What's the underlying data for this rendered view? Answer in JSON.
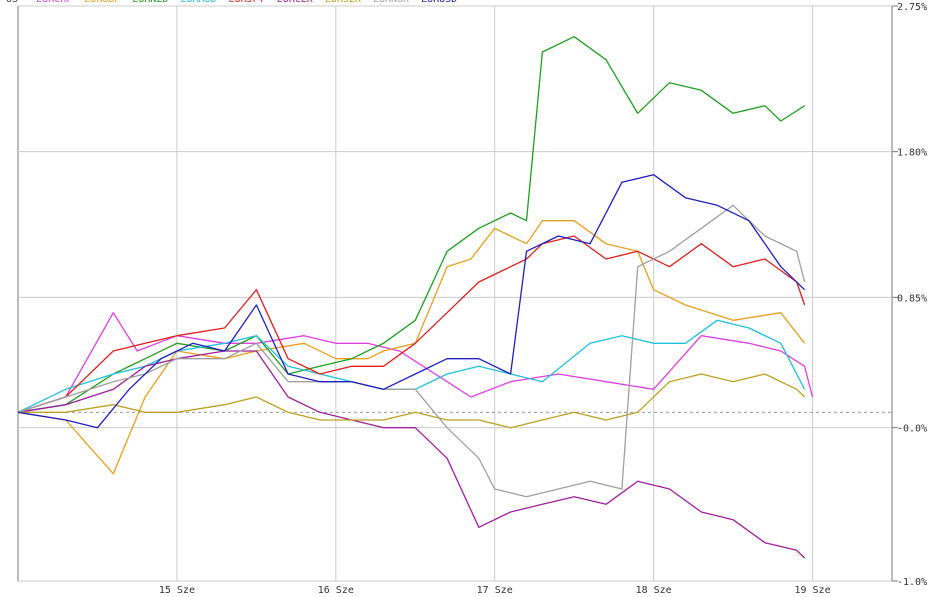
{
  "chart_data": {
    "type": "line",
    "title": "",
    "xlabel": "",
    "ylabel": "",
    "ylim": [
      -1.0,
      2.75
    ],
    "y_ticks": [
      {
        "value": 2.75,
        "label": "2.75%"
      },
      {
        "value": 1.8,
        "label": "1.80%"
      },
      {
        "value": 0.85,
        "label": "0.85%"
      },
      {
        "value": -0.0,
        "label": "-0.0%"
      },
      {
        "value": -1.0,
        "label": "-1.0%"
      }
    ],
    "x_ticks": [
      {
        "value": 1,
        "label": "15 Sze"
      },
      {
        "value": 2,
        "label": "16 Sze"
      },
      {
        "value": 3,
        "label": "17 Sze"
      },
      {
        "value": 4,
        "label": "18 Sze"
      },
      {
        "value": 5,
        "label": "19 Sze"
      }
    ],
    "xlim": [
      0,
      5.5
    ],
    "zero_line": 0.1,
    "grid": true,
    "legend_position": "top-left",
    "legend_prefix": "US",
    "series": [
      {
        "name": "EURCHF",
        "color": "#e040e0",
        "points": [
          [
            0,
            0.1
          ],
          [
            0.3,
            0.2
          ],
          [
            0.6,
            0.75
          ],
          [
            0.75,
            0.5
          ],
          [
            1.0,
            0.6
          ],
          [
            1.3,
            0.55
          ],
          [
            1.5,
            0.55
          ],
          [
            1.8,
            0.6
          ],
          [
            2.0,
            0.55
          ],
          [
            2.2,
            0.55
          ],
          [
            2.4,
            0.5
          ],
          [
            2.7,
            0.3
          ],
          [
            2.85,
            0.2
          ],
          [
            3.1,
            0.3
          ],
          [
            3.4,
            0.35
          ],
          [
            3.7,
            0.3
          ],
          [
            4.0,
            0.25
          ],
          [
            4.3,
            0.6
          ],
          [
            4.6,
            0.55
          ],
          [
            4.8,
            0.5
          ],
          [
            4.95,
            0.4
          ],
          [
            5.0,
            0.2
          ]
        ]
      },
      {
        "name": "EURGBP",
        "color": "#e8a020",
        "points": [
          [
            0,
            0.1
          ],
          [
            0.3,
            0.05
          ],
          [
            0.6,
            -0.3
          ],
          [
            0.8,
            0.2
          ],
          [
            1.0,
            0.5
          ],
          [
            1.3,
            0.45
          ],
          [
            1.5,
            0.5
          ],
          [
            1.8,
            0.55
          ],
          [
            2.0,
            0.45
          ],
          [
            2.2,
            0.45
          ],
          [
            2.3,
            0.5
          ],
          [
            2.5,
            0.55
          ],
          [
            2.7,
            1.05
          ],
          [
            2.85,
            1.1
          ],
          [
            3.0,
            1.3
          ],
          [
            3.2,
            1.2
          ],
          [
            3.3,
            1.35
          ],
          [
            3.5,
            1.35
          ],
          [
            3.7,
            1.2
          ],
          [
            3.9,
            1.15
          ],
          [
            4.0,
            0.9
          ],
          [
            4.2,
            0.8
          ],
          [
            4.5,
            0.7
          ],
          [
            4.8,
            0.75
          ],
          [
            4.95,
            0.55
          ]
        ]
      },
      {
        "name": "EURNZD",
        "color": "#20a020",
        "points": [
          [
            0,
            0.1
          ],
          [
            0.3,
            0.15
          ],
          [
            0.6,
            0.35
          ],
          [
            0.8,
            0.45
          ],
          [
            1.0,
            0.55
          ],
          [
            1.3,
            0.5
          ],
          [
            1.5,
            0.6
          ],
          [
            1.7,
            0.35
          ],
          [
            1.9,
            0.4
          ],
          [
            2.1,
            0.45
          ],
          [
            2.3,
            0.55
          ],
          [
            2.5,
            0.7
          ],
          [
            2.7,
            1.15
          ],
          [
            2.9,
            1.3
          ],
          [
            3.1,
            1.4
          ],
          [
            3.2,
            1.35
          ],
          [
            3.3,
            2.45
          ],
          [
            3.5,
            2.55
          ],
          [
            3.7,
            2.4
          ],
          [
            3.9,
            2.05
          ],
          [
            4.1,
            2.25
          ],
          [
            4.3,
            2.2
          ],
          [
            4.5,
            2.05
          ],
          [
            4.7,
            2.1
          ],
          [
            4.8,
            2.0
          ],
          [
            4.95,
            2.1
          ]
        ]
      },
      {
        "name": "EURAUD",
        "color": "#20c0e0",
        "points": [
          [
            0,
            0.1
          ],
          [
            0.3,
            0.25
          ],
          [
            0.6,
            0.35
          ],
          [
            0.8,
            0.4
          ],
          [
            1.0,
            0.5
          ],
          [
            1.3,
            0.55
          ],
          [
            1.5,
            0.6
          ],
          [
            1.7,
            0.4
          ],
          [
            1.9,
            0.35
          ],
          [
            2.1,
            0.3
          ],
          [
            2.3,
            0.25
          ],
          [
            2.5,
            0.25
          ],
          [
            2.7,
            0.35
          ],
          [
            2.9,
            0.4
          ],
          [
            3.1,
            0.35
          ],
          [
            3.3,
            0.3
          ],
          [
            3.6,
            0.55
          ],
          [
            3.8,
            0.6
          ],
          [
            4.0,
            0.55
          ],
          [
            4.2,
            0.55
          ],
          [
            4.4,
            0.7
          ],
          [
            4.6,
            0.65
          ],
          [
            4.8,
            0.55
          ],
          [
            4.95,
            0.25
          ]
        ]
      },
      {
        "name": "EURJPY",
        "color": "#e02020",
        "points": [
          [
            0,
            0.1
          ],
          [
            0.3,
            0.2
          ],
          [
            0.6,
            0.5
          ],
          [
            0.8,
            0.55
          ],
          [
            1.0,
            0.6
          ],
          [
            1.3,
            0.65
          ],
          [
            1.5,
            0.9
          ],
          [
            1.7,
            0.45
          ],
          [
            1.9,
            0.35
          ],
          [
            2.1,
            0.4
          ],
          [
            2.3,
            0.4
          ],
          [
            2.5,
            0.55
          ],
          [
            2.7,
            0.75
          ],
          [
            2.9,
            0.95
          ],
          [
            3.1,
            1.05
          ],
          [
            3.2,
            1.1
          ],
          [
            3.3,
            1.2
          ],
          [
            3.5,
            1.25
          ],
          [
            3.7,
            1.1
          ],
          [
            3.9,
            1.15
          ],
          [
            4.1,
            1.05
          ],
          [
            4.3,
            1.2
          ],
          [
            4.5,
            1.05
          ],
          [
            4.7,
            1.1
          ],
          [
            4.9,
            0.95
          ],
          [
            4.95,
            0.8
          ]
        ]
      },
      {
        "name": "EURCZK",
        "color": "#a020a0",
        "points": [
          [
            0,
            0.1
          ],
          [
            0.3,
            0.15
          ],
          [
            0.6,
            0.25
          ],
          [
            0.8,
            0.4
          ],
          [
            1.0,
            0.45
          ],
          [
            1.3,
            0.5
          ],
          [
            1.5,
            0.5
          ],
          [
            1.7,
            0.2
          ],
          [
            1.9,
            0.1
          ],
          [
            2.1,
            0.05
          ],
          [
            2.3,
            0.0
          ],
          [
            2.5,
            0.0
          ],
          [
            2.7,
            -0.2
          ],
          [
            2.9,
            -0.65
          ],
          [
            3.1,
            -0.55
          ],
          [
            3.3,
            -0.5
          ],
          [
            3.5,
            -0.45
          ],
          [
            3.7,
            -0.5
          ],
          [
            3.9,
            -0.35
          ],
          [
            4.1,
            -0.4
          ],
          [
            4.3,
            -0.55
          ],
          [
            4.5,
            -0.6
          ],
          [
            4.7,
            -0.75
          ],
          [
            4.9,
            -0.8
          ],
          [
            4.95,
            -0.85
          ]
        ]
      },
      {
        "name": "EURSEK",
        "color": "#c0a020",
        "points": [
          [
            0,
            0.1
          ],
          [
            0.3,
            0.1
          ],
          [
            0.6,
            0.15
          ],
          [
            0.8,
            0.1
          ],
          [
            1.0,
            0.1
          ],
          [
            1.3,
            0.15
          ],
          [
            1.5,
            0.2
          ],
          [
            1.7,
            0.1
          ],
          [
            1.9,
            0.05
          ],
          [
            2.1,
            0.05
          ],
          [
            2.3,
            0.05
          ],
          [
            2.5,
            0.1
          ],
          [
            2.7,
            0.05
          ],
          [
            2.9,
            0.05
          ],
          [
            3.1,
            0.0
          ],
          [
            3.3,
            0.05
          ],
          [
            3.5,
            0.1
          ],
          [
            3.7,
            0.05
          ],
          [
            3.9,
            0.1
          ],
          [
            4.1,
            0.3
          ],
          [
            4.3,
            0.35
          ],
          [
            4.5,
            0.3
          ],
          [
            4.7,
            0.35
          ],
          [
            4.9,
            0.25
          ],
          [
            4.95,
            0.2
          ]
        ]
      },
      {
        "name": "EURNOK",
        "color": "#a0a0a0",
        "points": [
          [
            0,
            0.1
          ],
          [
            0.3,
            0.2
          ],
          [
            0.6,
            0.3
          ],
          [
            0.8,
            0.35
          ],
          [
            1.0,
            0.45
          ],
          [
            1.3,
            0.45
          ],
          [
            1.5,
            0.55
          ],
          [
            1.7,
            0.3
          ],
          [
            1.9,
            0.3
          ],
          [
            2.1,
            0.3
          ],
          [
            2.3,
            0.25
          ],
          [
            2.5,
            0.25
          ],
          [
            2.7,
            0.0
          ],
          [
            2.9,
            -0.2
          ],
          [
            3.0,
            -0.4
          ],
          [
            3.2,
            -0.45
          ],
          [
            3.4,
            -0.4
          ],
          [
            3.6,
            -0.35
          ],
          [
            3.8,
            -0.4
          ],
          [
            3.9,
            1.05
          ],
          [
            4.1,
            1.15
          ],
          [
            4.3,
            1.3
          ],
          [
            4.5,
            1.45
          ],
          [
            4.7,
            1.25
          ],
          [
            4.9,
            1.15
          ],
          [
            4.95,
            0.95
          ]
        ]
      },
      {
        "name": "EURUSD",
        "color": "#2020c0",
        "points": [
          [
            0,
            0.1
          ],
          [
            0.3,
            0.05
          ],
          [
            0.5,
            0.0
          ],
          [
            0.7,
            0.25
          ],
          [
            0.9,
            0.45
          ],
          [
            1.1,
            0.55
          ],
          [
            1.3,
            0.5
          ],
          [
            1.5,
            0.8
          ],
          [
            1.7,
            0.35
          ],
          [
            1.9,
            0.3
          ],
          [
            2.1,
            0.3
          ],
          [
            2.3,
            0.25
          ],
          [
            2.5,
            0.35
          ],
          [
            2.7,
            0.45
          ],
          [
            2.9,
            0.45
          ],
          [
            3.1,
            0.35
          ],
          [
            3.2,
            1.15
          ],
          [
            3.4,
            1.25
          ],
          [
            3.6,
            1.2
          ],
          [
            3.8,
            1.6
          ],
          [
            4.0,
            1.65
          ],
          [
            4.2,
            1.5
          ],
          [
            4.4,
            1.45
          ],
          [
            4.6,
            1.35
          ],
          [
            4.8,
            1.05
          ],
          [
            4.95,
            0.9
          ]
        ]
      }
    ]
  }
}
